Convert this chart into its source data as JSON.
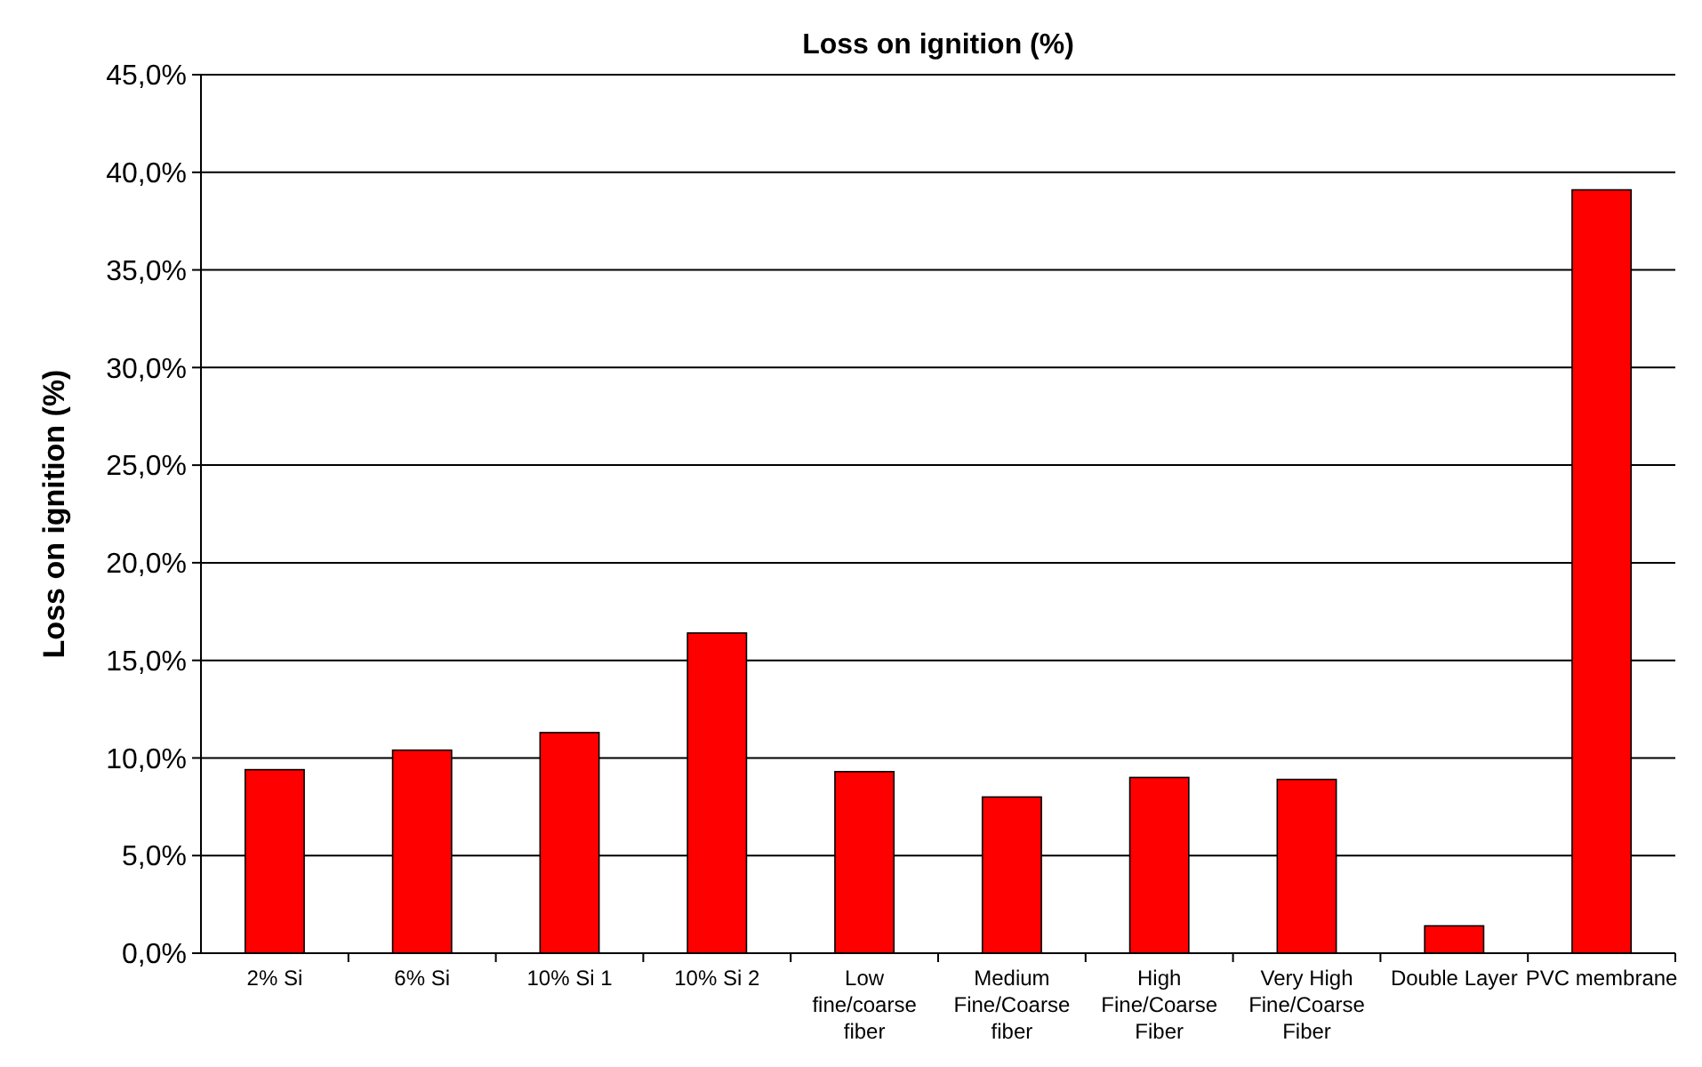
{
  "chart_data": {
    "type": "bar",
    "title": "Loss on ignition (%)",
    "ylabel": "Loss on ignition  (%)",
    "categories": [
      "2% Si",
      "6% Si",
      "10% Si 1",
      "10% Si 2",
      "Low fine/coarse fiber",
      "Medium Fine/Coarse fiber",
      "High Fine/Coarse Fiber",
      "Very High Fine/Coarse Fiber",
      "Double Layer",
      "PVC membrane"
    ],
    "values": [
      9.4,
      10.4,
      11.3,
      16.4,
      9.3,
      8.0,
      9.0,
      8.9,
      1.4,
      39.1
    ],
    "color": "#ff0000",
    "ylim": [
      0,
      45
    ],
    "yticks": [
      {
        "value": 0,
        "label": "0,0%"
      },
      {
        "value": 5,
        "label": "5,0%"
      },
      {
        "value": 10,
        "label": "10,0%"
      },
      {
        "value": 15,
        "label": "15,0%"
      },
      {
        "value": 20,
        "label": "20,0%"
      },
      {
        "value": 25,
        "label": "25,0%"
      },
      {
        "value": 30,
        "label": "30,0%"
      },
      {
        "value": 35,
        "label": "35,0%"
      },
      {
        "value": 40,
        "label": "40,0%"
      },
      {
        "value": 45,
        "label": "45,0%"
      }
    ],
    "grid": "y"
  }
}
